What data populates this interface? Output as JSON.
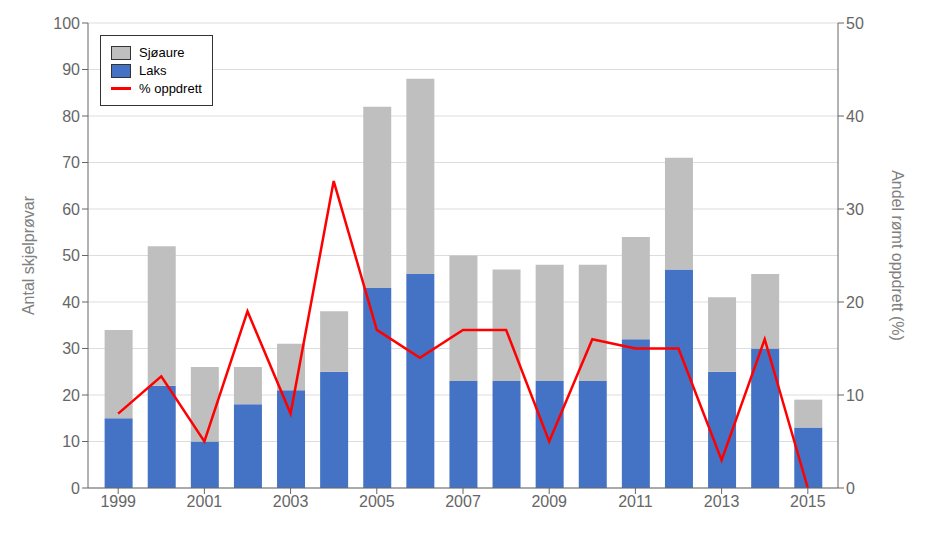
{
  "chart_data": {
    "type": "bar",
    "stacked": true,
    "grid": true,
    "legend": "upper left",
    "x": [
      1999,
      2000,
      2001,
      2002,
      2003,
      2004,
      2005,
      2006,
      2007,
      2008,
      2009,
      2010,
      2011,
      2012,
      2013,
      2014,
      2015
    ],
    "xlim": [
      1998.3,
      2015.7
    ],
    "xticks": [
      1999,
      2001,
      2003,
      2005,
      2007,
      2009,
      2011,
      2013,
      2015
    ],
    "ylim": [
      0,
      100
    ],
    "yticks": [
      0,
      10,
      20,
      30,
      40,
      50,
      60,
      70,
      80,
      90,
      100
    ],
    "y2lim": [
      0,
      50
    ],
    "y2ticks": [
      0,
      10,
      20,
      30,
      40,
      50
    ],
    "ylabel": "Antal skjelprøvar",
    "y2label": "Andel rømt oppdrett (%)",
    "series": [
      {
        "name": "Laks",
        "color": "#4472C4",
        "values": [
          15,
          22,
          10,
          18,
          21,
          25,
          43,
          46,
          23,
          23,
          23,
          23,
          32,
          47,
          25,
          30,
          13
        ]
      },
      {
        "name": "Sjøaure",
        "color": "#BFBFBF",
        "values": [
          19,
          30,
          16,
          8,
          10,
          13,
          39,
          42,
          27,
          24,
          25,
          25,
          22,
          24,
          16,
          16,
          6
        ]
      },
      {
        "name": "% oppdrett",
        "type": "line",
        "axis": "y2",
        "color": "#FF0000",
        "values": [
          8,
          12,
          5,
          19,
          8,
          33,
          17,
          14,
          17,
          17,
          5,
          16,
          15,
          15,
          3,
          16,
          0
        ]
      }
    ]
  }
}
